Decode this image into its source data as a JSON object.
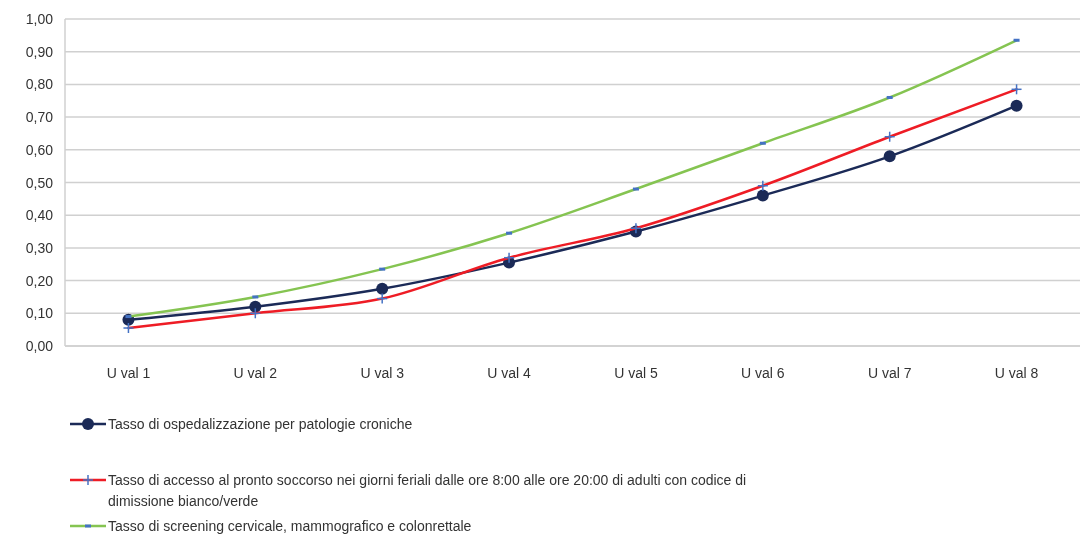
{
  "chart_data": {
    "type": "line",
    "categories": [
      "U val 1",
      "U val 2",
      "U val 3",
      "U val 4",
      "U val 5",
      "U val 6",
      "U val 7",
      "U val 8"
    ],
    "series": [
      {
        "name": "Tasso di ospedalizzazione per patologie croniche",
        "color": "#1b2a57",
        "marker": "circle",
        "values": [
          0.08,
          0.12,
          0.175,
          0.255,
          0.35,
          0.46,
          0.58,
          0.735
        ]
      },
      {
        "name": "Tasso di accesso al pronto soccorso nei giorni feriali dalle ore 8:00 alle ore 20:00 di adulti con codice di dimissione bianco/verde",
        "color": "#ee1c25",
        "marker": "cross",
        "values": [
          0.055,
          0.1,
          0.145,
          0.27,
          0.36,
          0.49,
          0.64,
          0.785
        ]
      },
      {
        "name": "Tasso di screening cervicale, mammografico e colonrettale",
        "color": "#85c451",
        "marker": "square",
        "values": [
          0.09,
          0.15,
          0.235,
          0.345,
          0.48,
          0.62,
          0.76,
          0.935
        ]
      }
    ],
    "ylim": [
      0,
      1
    ],
    "yticks": [
      {
        "value": 0,
        "label": "0,00"
      },
      {
        "value": 0.1,
        "label": "0,10"
      },
      {
        "value": 0.2,
        "label": "0,20"
      },
      {
        "value": 0.3,
        "label": "0,30"
      },
      {
        "value": 0.4,
        "label": "0,40"
      },
      {
        "value": 0.5,
        "label": "0,50"
      },
      {
        "value": 0.6,
        "label": "0,60"
      },
      {
        "value": 0.7,
        "label": "0,70"
      },
      {
        "value": 0.8,
        "label": "0,80"
      },
      {
        "value": 0.9,
        "label": "0,90"
      },
      {
        "value": 1,
        "label": "1,00"
      }
    ],
    "grid": "y",
    "legend": "bottom"
  }
}
